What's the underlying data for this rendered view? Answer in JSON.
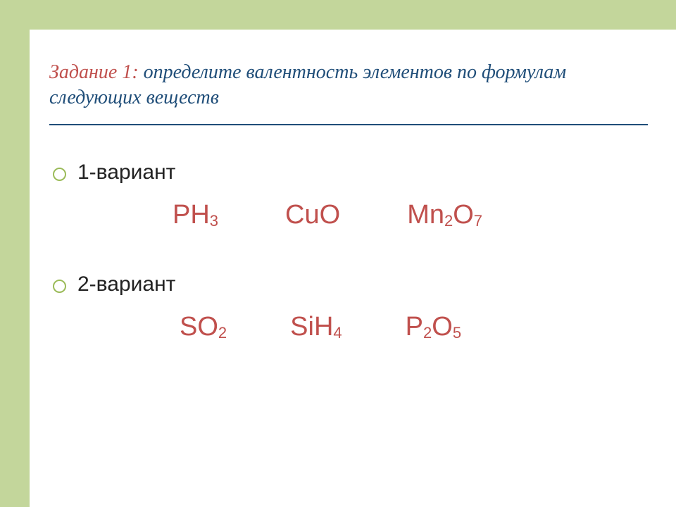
{
  "colors": {
    "band": "#c3d69b",
    "title_text": "#204e79",
    "accent_red": "#c0504d",
    "body_text": "#222222",
    "bullet_ring": "#9bbb59",
    "background": "#ffffff"
  },
  "title": {
    "task_label": "Задание 1:",
    "rest": " определите валентность элементов по формулам следующих веществ",
    "fontsize": 28,
    "italic": true
  },
  "variants": [
    {
      "label": "1-вариант",
      "formulas": [
        {
          "parts": [
            {
              "t": "PH"
            },
            {
              "t": "3",
              "sub": true
            }
          ]
        },
        {
          "parts": [
            {
              "t": "CuO"
            }
          ]
        },
        {
          "parts": [
            {
              "t": "Mn"
            },
            {
              "t": "2",
              "sub": true
            },
            {
              "t": "O"
            },
            {
              "t": "7",
              "sub": true
            }
          ]
        }
      ]
    },
    {
      "label": "2-вариант",
      "formulas": [
        {
          "parts": [
            {
              "t": "SO"
            },
            {
              "t": "2",
              "sub": true
            }
          ]
        },
        {
          "parts": [
            {
              "t": "SiH"
            },
            {
              "t": "4",
              "sub": true
            }
          ]
        },
        {
          "parts": [
            {
              "t": "P"
            },
            {
              "t": "2",
              "sub": true
            },
            {
              "t": "O"
            },
            {
              "t": "5",
              "sub": true
            }
          ]
        }
      ]
    }
  ],
  "typography": {
    "title_font": "Georgia, serif",
    "body_font": "Arial, sans-serif",
    "variant_fontsize": 30,
    "formula_fontsize": 38,
    "sub_fontsize": 22
  }
}
